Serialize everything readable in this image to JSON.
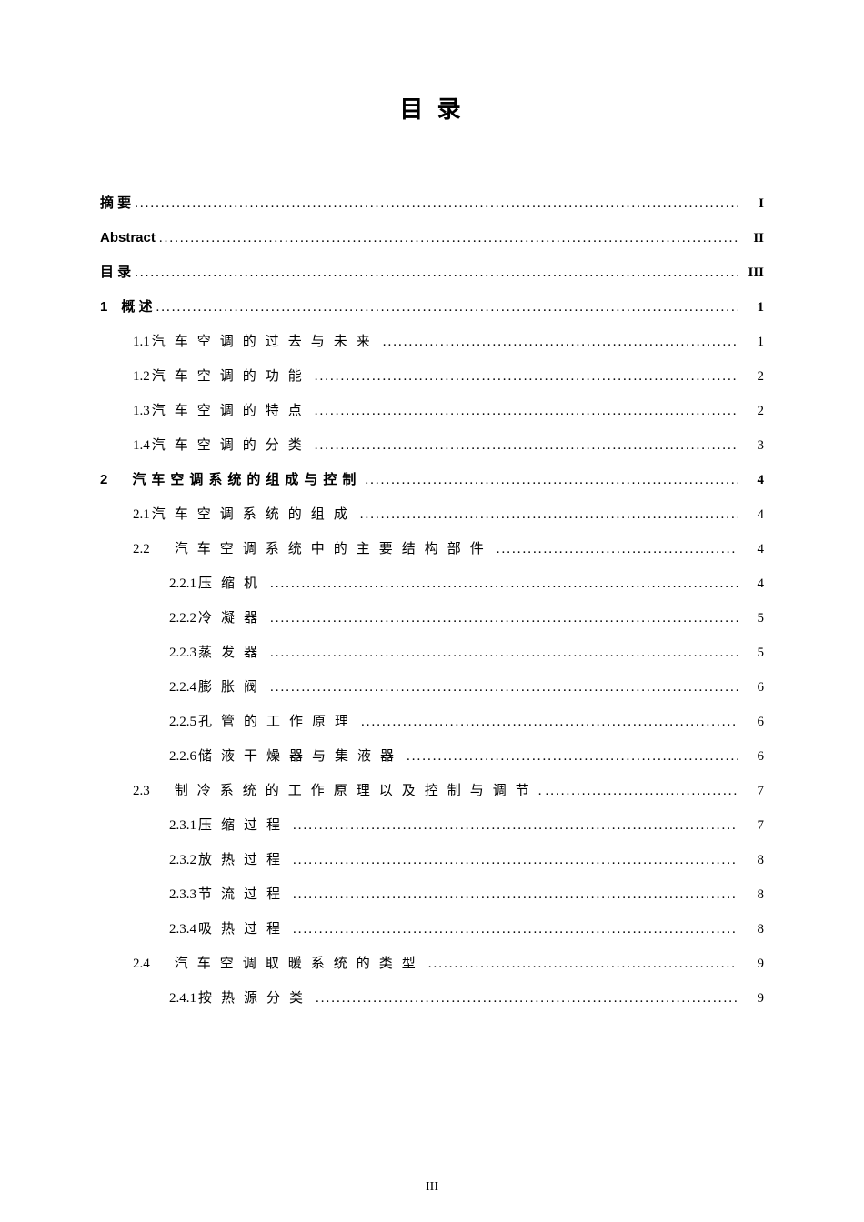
{
  "title": "目 录",
  "footer_page": "III",
  "entries": [
    {
      "label": "摘 要",
      "page": "I",
      "bold": true,
      "indent": 0,
      "leader": "dotted",
      "spaced": false
    },
    {
      "label": "Abstract",
      "page": "II",
      "bold": true,
      "indent": 0,
      "leader": "dotted",
      "spaced": false
    },
    {
      "label": "目 录",
      "page": "III",
      "bold": true,
      "indent": 0,
      "leader": "dotted",
      "spaced": false
    },
    {
      "label": "1　概 述",
      "page": "1",
      "bold": true,
      "indent": 0,
      "leader": "dotted",
      "spaced": false
    },
    {
      "num": "1.1",
      "label": "汽车空调的过去与未来",
      "page": "1",
      "bold": false,
      "indent": 1,
      "leader": "dotted",
      "spaced": true
    },
    {
      "num": "1.2",
      "label": "汽车空调的功能",
      "page": "2",
      "bold": false,
      "indent": 1,
      "leader": "dotted",
      "spaced": true
    },
    {
      "num": "1.3",
      "label": "汽车空调的特点",
      "page": "2",
      "bold": false,
      "indent": 1,
      "leader": "dotted",
      "spaced": true
    },
    {
      "num": "1.4",
      "label": "汽车空调的分类",
      "page": "3",
      "bold": false,
      "indent": 1,
      "leader": "dotted",
      "spaced": true
    },
    {
      "label": "2　汽车空调系统的组成与控制",
      "page": "4",
      "bold": true,
      "indent": 0,
      "leader": "dotted",
      "spaced_wide": false,
      "spaced_bold": true
    },
    {
      "num": "2.1",
      "label": "汽车空调系统的组成",
      "page": "4",
      "bold": false,
      "indent": 1,
      "leader": "dotted",
      "spaced": true
    },
    {
      "num": "2.2",
      "label": "　汽车空调系统中的主要结构部件",
      "page": "4",
      "bold": false,
      "indent": 1,
      "leader": "dotted",
      "spaced": true
    },
    {
      "num": "2.2.1",
      "label": "压缩机",
      "page": "4",
      "bold": false,
      "indent": 2,
      "leader": "dotted",
      "spaced": true
    },
    {
      "num": "2.2.2",
      "label": "冷凝器",
      "page": "5",
      "bold": false,
      "indent": 2,
      "leader": "dotted",
      "spaced": true
    },
    {
      "num": "2.2.3",
      "label": "蒸发器",
      "page": "5",
      "bold": false,
      "indent": 2,
      "leader": "dotted",
      "spaced": true
    },
    {
      "num": "2.2.4",
      "label": "膨胀阀",
      "page": "6",
      "bold": false,
      "indent": 2,
      "leader": "dotted",
      "spaced": true
    },
    {
      "num": "2.2.5",
      "label": "孔管的工作原理",
      "page": "6",
      "bold": false,
      "indent": 2,
      "leader": "dotted",
      "spaced": true
    },
    {
      "num": "2.2.6",
      "label": "储液干燥器与集液器",
      "page": "6",
      "bold": false,
      "indent": 2,
      "leader": "dotted",
      "spaced": true
    },
    {
      "num": "2.3",
      "label": "　制冷系统的工作原理以及控制与调节",
      "page": "7",
      "bold": false,
      "indent": 1,
      "leader": "dotted",
      "spaced": true,
      "trailing_dot": true
    },
    {
      "num": "2.3.1",
      "label": "压缩过程",
      "page": "7",
      "bold": false,
      "indent": 2,
      "leader": "dotted",
      "spaced": true
    },
    {
      "num": "2.3.2",
      "label": "放热过程",
      "page": "8",
      "bold": false,
      "indent": 2,
      "leader": "dotted",
      "spaced": true
    },
    {
      "num": "2.3.3",
      "label": "节流过程",
      "page": "8",
      "bold": false,
      "indent": 2,
      "leader": "dotted",
      "spaced": true
    },
    {
      "num": "2.3.4",
      "label": "吸热过程",
      "page": "8",
      "bold": false,
      "indent": 2,
      "leader": "dotted",
      "spaced": true
    },
    {
      "num": "2.4",
      "label": "　汽车空调取暖系统的类型",
      "page": "9",
      "bold": false,
      "indent": 1,
      "leader": "dotted",
      "spaced": true
    },
    {
      "num": "2.4.1",
      "label": "按热源分类",
      "page": "9",
      "bold": false,
      "indent": 2,
      "leader": "dotted",
      "spaced": true
    }
  ]
}
